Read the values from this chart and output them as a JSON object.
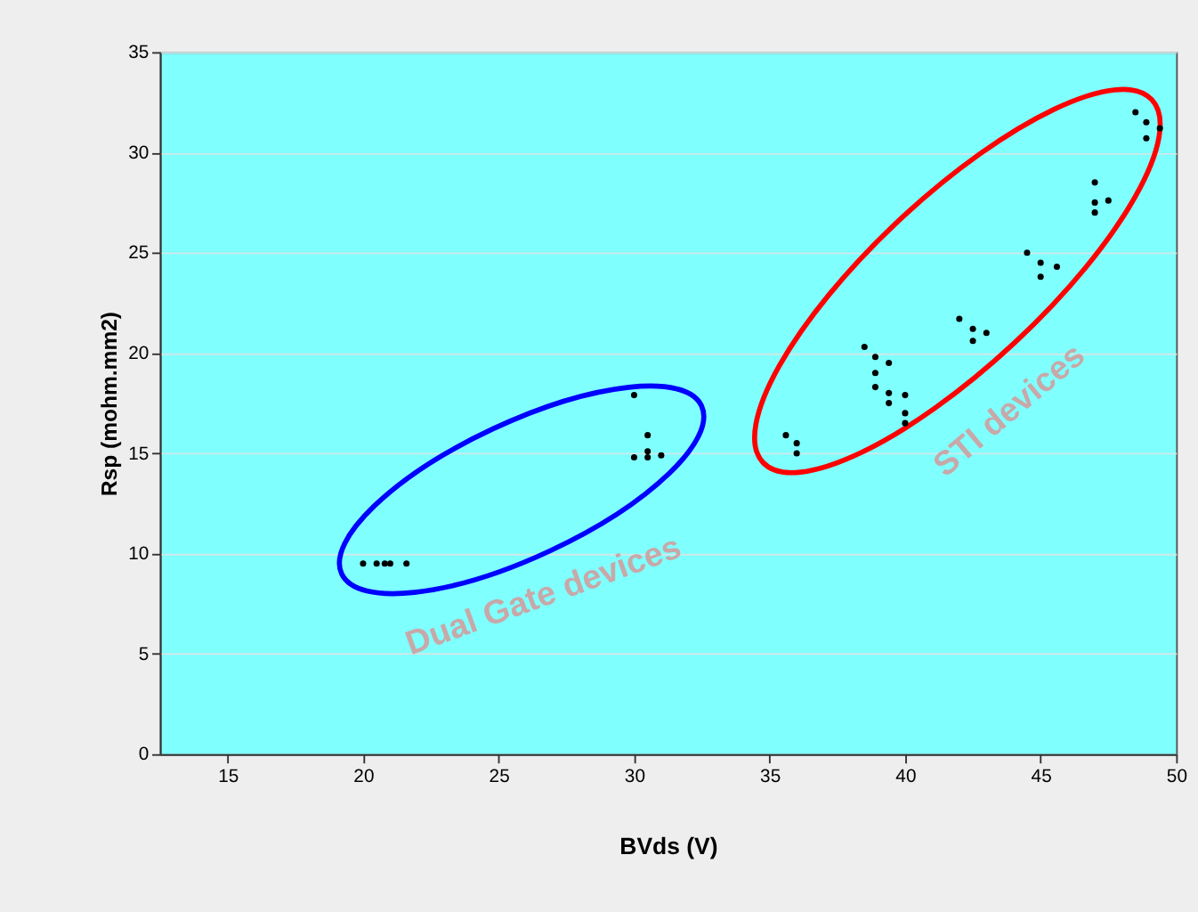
{
  "chart_data": {
    "type": "scatter",
    "xlabel": "BVds (V)",
    "ylabel": "Rsp (mohm.mm2)",
    "xlim": [
      12.5,
      50
    ],
    "xticks": [
      15,
      20,
      25,
      30,
      35,
      40,
      45,
      50
    ],
    "ylim": [
      0,
      35
    ],
    "yticks": [
      0,
      5,
      10,
      15,
      20,
      25,
      30,
      35
    ],
    "grid": "y",
    "marker": "circle",
    "legend": false,
    "series": [
      {
        "color": "#000000",
        "x": [
          20,
          20.5,
          20.8,
          21,
          21.6,
          30,
          30.5,
          30,
          30.5,
          30.5,
          31
        ],
        "values": [
          9.5,
          9.5,
          9.5,
          9.5,
          9.5,
          17.9,
          15.9,
          14.8,
          14.8,
          15.1,
          14.9
        ]
      },
      {
        "color": "#000000",
        "x": [
          35.6,
          36,
          36,
          38.5,
          38.9,
          38.9,
          38.9,
          39.4,
          39.4,
          39.4,
          40,
          40,
          40,
          42,
          42.5,
          42.5,
          43,
          44.5,
          45,
          45,
          45.6,
          47,
          47,
          47,
          47.5,
          48.5,
          48.9,
          48.9,
          49.4
        ],
        "values": [
          15.9,
          15.5,
          15.0,
          20.3,
          19.8,
          19.0,
          18.3,
          19.5,
          18.0,
          17.5,
          17.9,
          17.0,
          16.5,
          21.7,
          21.2,
          20.6,
          21.0,
          25.0,
          24.5,
          23.8,
          24.3,
          28.5,
          27.5,
          27.0,
          27.6,
          32.0,
          31.5,
          30.7,
          31.2
        ]
      }
    ],
    "annotations": [
      "Dual Gate devices",
      "STI devices"
    ]
  }
}
